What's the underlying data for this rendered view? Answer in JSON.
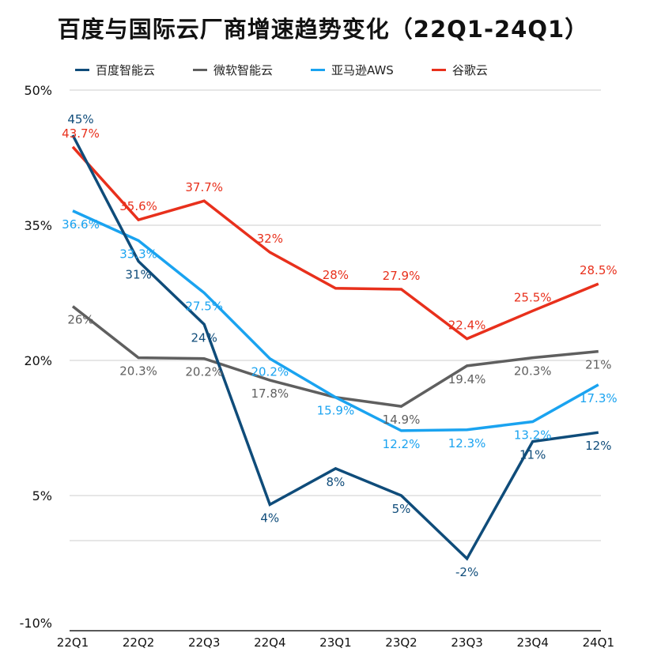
{
  "chart_data": {
    "type": "line",
    "title": "百度与国际云厂商增速趋势变化（22Q1-24Q1）",
    "xlabel": "",
    "ylabel": "",
    "ylim": [
      -10,
      50
    ],
    "yticks": [
      -10,
      5,
      20,
      35,
      50
    ],
    "ytick_labels": [
      "-10%",
      "5%",
      "20%",
      "35%",
      "50%"
    ],
    "gridlines": [
      0,
      5,
      20,
      35,
      50
    ],
    "legend_position": "top",
    "categories": [
      "22Q1",
      "22Q2",
      "22Q3",
      "22Q4",
      "23Q1",
      "23Q2",
      "23Q3",
      "23Q4",
      "24Q1"
    ],
    "series": [
      {
        "name": "百度智能云",
        "color": "#0f4c7a",
        "values": [
          45,
          31,
          24,
          4,
          8,
          5,
          -2,
          11,
          12
        ],
        "labels": [
          "45%",
          "31%",
          "24%",
          "4%",
          "8%",
          "5%",
          "-2%",
          "11%",
          "12%"
        ]
      },
      {
        "name": "微软智能云",
        "color": "#5f5f5f",
        "values": [
          26,
          20.3,
          20.2,
          17.8,
          15.9,
          14.9,
          19.4,
          20.3,
          21
        ],
        "labels": [
          "26%",
          "20.3%",
          "20.2%",
          "17.8%",
          "",
          "14.9%",
          "19.4%",
          "20.3%",
          "21%"
        ]
      },
      {
        "name": "亚马逊AWS",
        "color": "#1aa3f0",
        "values": [
          36.6,
          33.3,
          27.5,
          20.2,
          15.9,
          12.2,
          12.3,
          13.2,
          17.3
        ],
        "labels": [
          "36.6%",
          "33.3%",
          "27.5%",
          "20.2%",
          "15.9%",
          "12.2%",
          "12.3%",
          "13.2%",
          "17.3%"
        ]
      },
      {
        "name": "谷歌云",
        "color": "#e8301c",
        "values": [
          43.7,
          35.6,
          37.7,
          32,
          28,
          27.9,
          22.4,
          25.5,
          28.5
        ],
        "labels": [
          "43.7%",
          "35.6%",
          "37.7%",
          "32%",
          "28%",
          "27.9%",
          "22.4%",
          "25.5%",
          "28.5%"
        ]
      }
    ]
  }
}
